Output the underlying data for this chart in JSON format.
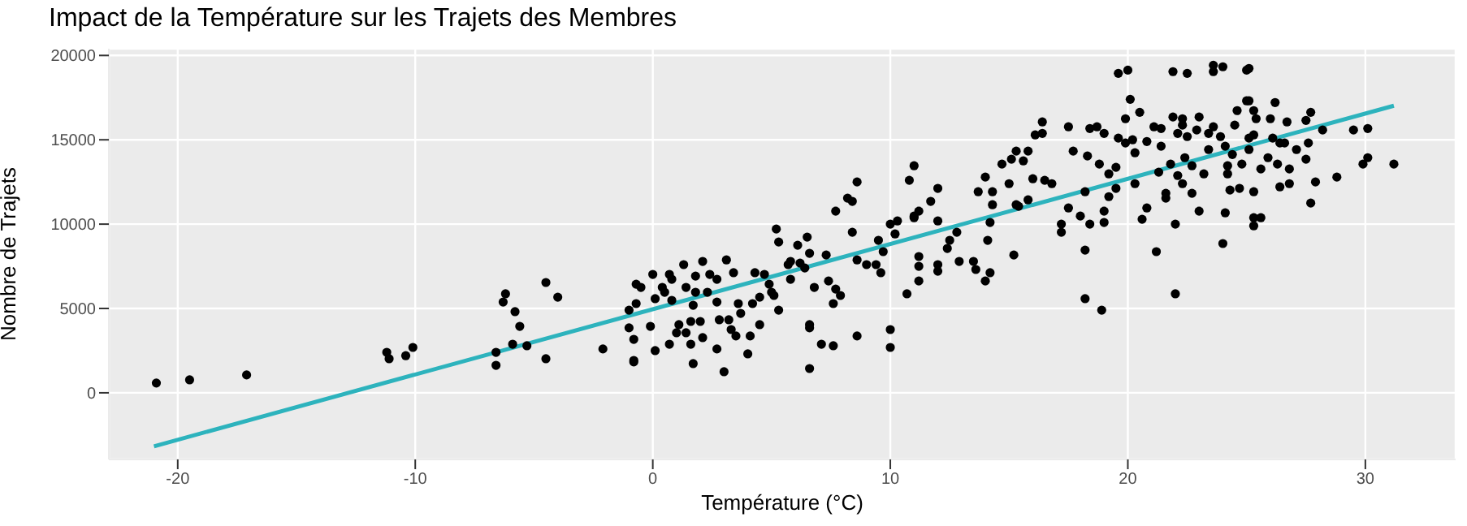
{
  "chart_data": {
    "type": "scatter",
    "title": "Impact de la Température sur les Trajets des Membres",
    "xlabel": "Température (°C)",
    "ylabel": "Nombre de Trajets",
    "xlim": [
      -22.9,
      33.8
    ],
    "ylim": [
      -3950,
      20400
    ],
    "xticks": [
      -20,
      -10,
      0,
      10,
      20,
      30
    ],
    "yticks": [
      0,
      5000,
      10000,
      15000,
      20000
    ],
    "grid": true,
    "marker": "circle",
    "series": [
      {
        "color": "#000000",
        "x": [
          -20.9,
          -19.5,
          -17.1,
          -11.2,
          -11.1,
          -10.4,
          -10.1,
          -6.6,
          -6.6,
          -6.3,
          -6.2,
          -5.8,
          -5.6,
          -5.9,
          -5.3,
          -4.5,
          -4.0,
          -4.5,
          -2.1,
          -1.0,
          -0.7,
          -0.5,
          -0.7,
          -1.0,
          -0.8,
          -0.8,
          -0.8,
          -0.1,
          0.0,
          0.1,
          0.1,
          0.4,
          0.5,
          0.7,
          0.8,
          0.8,
          0.7,
          1.0,
          1.1,
          1.3,
          1.4,
          1.4,
          1.6,
          1.6,
          1.7,
          1.7,
          1.8,
          1.8,
          2.0,
          2.1,
          2.1,
          2.3,
          2.4,
          2.7,
          2.7,
          2.7,
          2.8,
          3.0,
          3.1,
          3.2,
          3.3,
          3.4,
          3.5,
          3.6,
          3.7,
          4.0,
          4.1,
          4.2,
          4.3,
          4.5,
          4.5,
          4.7,
          4.9,
          5.0,
          5.1,
          5.3,
          5.2,
          5.3,
          5.7,
          5.8,
          5.8,
          6.1,
          6.2,
          6.4,
          6.5,
          6.6,
          6.6,
          6.6,
          6.6,
          6.8,
          7.1,
          7.3,
          7.4,
          7.6,
          7.6,
          7.7,
          7.9,
          7.7,
          8.2,
          8.4,
          8.4,
          8.6,
          8.6,
          8.6,
          9.0,
          9.4,
          9.5,
          9.6,
          9.7,
          10.0,
          10.0,
          10.0,
          10.2,
          10.3,
          10.7,
          10.8,
          11.0,
          11.0,
          11.0,
          11.2,
          11.2,
          11.2,
          11.2,
          11.7,
          12.0,
          12.0,
          12.0,
          12.0,
          12.4,
          12.5,
          12.8,
          12.9,
          13.5,
          13.6,
          13.7,
          14.0,
          14.0,
          14.2,
          14.2,
          14.1,
          14.3,
          14.3,
          15.0,
          15.2,
          15.3,
          14.7,
          15.1,
          15.3,
          15.6,
          15.8,
          16.1,
          16.4,
          16.4,
          16.0,
          16.5,
          16.8,
          15.8,
          15.4,
          17.2,
          17.2,
          17.5,
          17.7,
          17.5,
          18.0,
          18.2,
          18.2,
          18.2,
          18.9,
          18.4,
          18.3,
          18.4,
          18.7,
          19.0,
          18.8,
          19.2,
          19.2,
          19.0,
          19.0,
          19.5,
          19.5,
          19.6,
          20.0,
          20.1,
          19.9,
          19.6,
          19.9,
          20.2,
          20.5,
          20.3,
          20.3,
          20.8,
          20.6,
          20.8,
          21.2,
          21.1,
          21.4,
          21.4,
          21.3,
          21.6,
          21.6,
          21.9,
          22.5,
          21.9,
          22.3,
          22.1,
          22.3,
          22.5,
          21.8,
          22.1,
          22.3,
          22.4,
          22.7,
          22.0,
          22.0,
          22.7,
          23.0,
          22.9,
          23.2,
          23.0,
          23.4,
          23.4,
          23.6,
          23.6,
          24.0,
          23.6,
          23.9,
          24.1,
          24.2,
          24.1,
          24.0,
          24.2,
          24.4,
          24.5,
          24.3,
          24.7,
          24.8,
          24.6,
          25.0,
          25.1,
          25.0,
          25.1,
          25.3,
          25.4,
          25.1,
          25.3,
          25.1,
          25.3,
          25.3,
          25.3,
          25.6,
          25.6,
          25.9,
          26.0,
          26.2,
          26.1,
          26.3,
          26.4,
          26.6,
          26.4,
          26.8,
          26.8,
          27.1,
          26.7,
          27.5,
          27.5,
          27.7,
          27.6,
          27.9,
          27.7,
          28.2,
          28.8,
          29.5,
          30.1,
          29.9,
          30.1,
          31.2
        ],
        "values": [
          580,
          770,
          1060,
          2400,
          2020,
          2200,
          2690,
          2400,
          1630,
          5380,
          5870,
          4810,
          3940,
          2880,
          2790,
          6540,
          5670,
          2020,
          2600,
          4900,
          6440,
          6250,
          5290,
          3850,
          3170,
          1920,
          1830,
          3940,
          7020,
          5580,
          2500,
          6250,
          5960,
          7020,
          5480,
          6730,
          2880,
          3560,
          4040,
          7600,
          6250,
          3560,
          4230,
          2880,
          1730,
          5190,
          6920,
          5960,
          4230,
          3270,
          7790,
          5960,
          7020,
          5380,
          6730,
          2600,
          4330,
          1250,
          7880,
          4330,
          3750,
          7120,
          3370,
          5290,
          4710,
          2310,
          3370,
          5290,
          7120,
          5670,
          4040,
          7020,
          6440,
          5960,
          5770,
          4900,
          9710,
          8940,
          7600,
          6730,
          7790,
          8750,
          7690,
          7400,
          9230,
          8270,
          4040,
          1440,
          3850,
          6250,
          2880,
          8170,
          6630,
          5290,
          2790,
          6150,
          5770,
          10770,
          11540,
          11350,
          9520,
          12500,
          3370,
          7880,
          7600,
          7600,
          9040,
          7120,
          8370,
          3750,
          2690,
          10000,
          9420,
          10190,
          5870,
          12600,
          13460,
          10480,
          10380,
          10770,
          8080,
          7500,
          6630,
          11350,
          12120,
          10190,
          7600,
          7210,
          8560,
          9040,
          9520,
          7790,
          7790,
          7310,
          11920,
          12790,
          6630,
          7120,
          10100,
          9040,
          11920,
          11150,
          12400,
          8170,
          11150,
          13560,
          13850,
          14330,
          13750,
          14330,
          15290,
          16060,
          15380,
          12690,
          12600,
          12400,
          11440,
          11060,
          10000,
          9520,
          15770,
          14330,
          10960,
          10480,
          11920,
          8460,
          5580,
          4900,
          10000,
          14040,
          15670,
          15770,
          15380,
          13560,
          12980,
          11630,
          10770,
          10100,
          12120,
          13370,
          18940,
          19130,
          17400,
          16250,
          15100,
          14810,
          15000,
          16630,
          14230,
          12400,
          14900,
          10290,
          10960,
          8370,
          15770,
          15670,
          14620,
          13080,
          11830,
          11540,
          19040,
          18940,
          16350,
          16250,
          15380,
          15870,
          15190,
          13560,
          12880,
          12400,
          13940,
          13460,
          10000,
          5870,
          11830,
          16350,
          15580,
          12980,
          10770,
          15380,
          14420,
          19420,
          19040,
          19330,
          15770,
          15190,
          14620,
          12980,
          10670,
          8850,
          13460,
          14130,
          15870,
          12020,
          12120,
          13560,
          16730,
          19130,
          19230,
          17310,
          17310,
          16730,
          16250,
          15100,
          15290,
          14420,
          11920,
          10380,
          9900,
          10380,
          13270,
          13940,
          16250,
          17210,
          15100,
          13560,
          14810,
          14810,
          12210,
          13270,
          12400,
          14420,
          16060,
          13850,
          16150,
          16630,
          14810,
          12500,
          11250,
          15580,
          12790,
          15580,
          15670,
          13560,
          13940,
          13560
        ]
      },
      {
        "type": "line",
        "color": "#2db3bd",
        "marker": "none",
        "x": [
          -21,
          31.2
        ],
        "values": [
          -3170,
          17020
        ]
      }
    ]
  }
}
